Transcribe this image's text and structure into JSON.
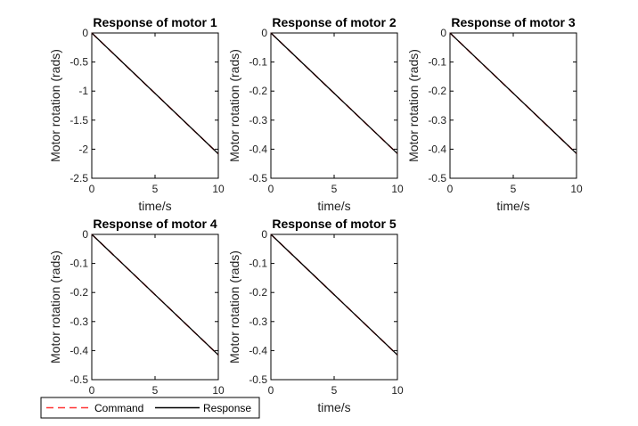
{
  "legend": {
    "entries": [
      {
        "label": "Command",
        "color": "#ff3333",
        "dashed": true
      },
      {
        "label": "Response",
        "color": "#000000",
        "dashed": false
      }
    ]
  },
  "chart_data": [
    {
      "type": "line",
      "title": "Response of motor 1",
      "xlabel": "time/s",
      "ylabel": "Motor rotation (rads)",
      "xlim": [
        0,
        10
      ],
      "ylim": [
        -2.5,
        0
      ],
      "xticks": [
        0,
        5,
        10
      ],
      "yticks": [
        0,
        -0.5,
        -1,
        -1.5,
        -2,
        -2.5
      ],
      "ytick_labels": [
        "0",
        "-0.5",
        "-1",
        "-1.5",
        "-2",
        "-2.5"
      ],
      "grid": false,
      "series": [
        {
          "name": "Command",
          "color": "#ff3333",
          "style": "dashed",
          "x": [
            0,
            10
          ],
          "y": [
            0,
            -2.08
          ]
        },
        {
          "name": "Response",
          "color": "#000000",
          "style": "solid",
          "x": [
            0,
            10
          ],
          "y": [
            0,
            -2.08
          ]
        }
      ]
    },
    {
      "type": "line",
      "title": "Response of motor 2",
      "xlabel": "time/s",
      "ylabel": "Motor rotation (rads)",
      "xlim": [
        0,
        10
      ],
      "ylim": [
        -0.5,
        0
      ],
      "xticks": [
        0,
        5,
        10
      ],
      "yticks": [
        0,
        -0.1,
        -0.2,
        -0.3,
        -0.4,
        -0.5
      ],
      "ytick_labels": [
        "0",
        "-0.1",
        "-0.2",
        "-0.3",
        "-0.4",
        "-0.5"
      ],
      "grid": false,
      "series": [
        {
          "name": "Command",
          "color": "#ff3333",
          "style": "dashed",
          "x": [
            0,
            10
          ],
          "y": [
            0,
            -0.415
          ]
        },
        {
          "name": "Response",
          "color": "#000000",
          "style": "solid",
          "x": [
            0,
            10
          ],
          "y": [
            0,
            -0.415
          ]
        }
      ]
    },
    {
      "type": "line",
      "title": "Response of motor 3",
      "xlabel": "time/s",
      "ylabel": "Motor rotation (rads)",
      "xlim": [
        0,
        10
      ],
      "ylim": [
        -0.5,
        0
      ],
      "xticks": [
        0,
        5,
        10
      ],
      "yticks": [
        0,
        -0.1,
        -0.2,
        -0.3,
        -0.4,
        -0.5
      ],
      "ytick_labels": [
        "0",
        "-0.1",
        "-0.2",
        "-0.3",
        "-0.4",
        "-0.5"
      ],
      "grid": false,
      "series": [
        {
          "name": "Command",
          "color": "#ff3333",
          "style": "dashed",
          "x": [
            0,
            10
          ],
          "y": [
            0,
            -0.415
          ]
        },
        {
          "name": "Response",
          "color": "#000000",
          "style": "solid",
          "x": [
            0,
            10
          ],
          "y": [
            0,
            -0.415
          ]
        }
      ]
    },
    {
      "type": "line",
      "title": "Response of motor 4",
      "xlabel": "",
      "ylabel": "Motor rotation (rads)",
      "xlim": [
        0,
        10
      ],
      "ylim": [
        -0.5,
        0
      ],
      "xticks": [
        0,
        5,
        10
      ],
      "yticks": [
        0,
        -0.1,
        -0.2,
        -0.3,
        -0.4,
        -0.5
      ],
      "ytick_labels": [
        "0",
        "-0.1",
        "-0.2",
        "-0.3",
        "-0.4",
        "-0.5"
      ],
      "grid": false,
      "series": [
        {
          "name": "Command",
          "color": "#ff3333",
          "style": "dashed",
          "x": [
            0,
            10
          ],
          "y": [
            0,
            -0.415
          ]
        },
        {
          "name": "Response",
          "color": "#000000",
          "style": "solid",
          "x": [
            0,
            10
          ],
          "y": [
            0,
            -0.415
          ]
        }
      ]
    },
    {
      "type": "line",
      "title": "Response of motor 5",
      "xlabel": "time/s",
      "ylabel": "Motor rotation (rads)",
      "xlim": [
        0,
        10
      ],
      "ylim": [
        -0.5,
        0
      ],
      "xticks": [
        0,
        5,
        10
      ],
      "yticks": [
        0,
        -0.1,
        -0.2,
        -0.3,
        -0.4,
        -0.5
      ],
      "ytick_labels": [
        "0",
        "-0.1",
        "-0.2",
        "-0.3",
        "-0.4",
        "-0.5"
      ],
      "grid": false,
      "series": [
        {
          "name": "Command",
          "color": "#ff3333",
          "style": "dashed",
          "x": [
            0,
            10
          ],
          "y": [
            0,
            -0.415
          ]
        },
        {
          "name": "Response",
          "color": "#000000",
          "style": "solid",
          "x": [
            0,
            10
          ],
          "y": [
            0,
            -0.415
          ]
        }
      ]
    }
  ]
}
